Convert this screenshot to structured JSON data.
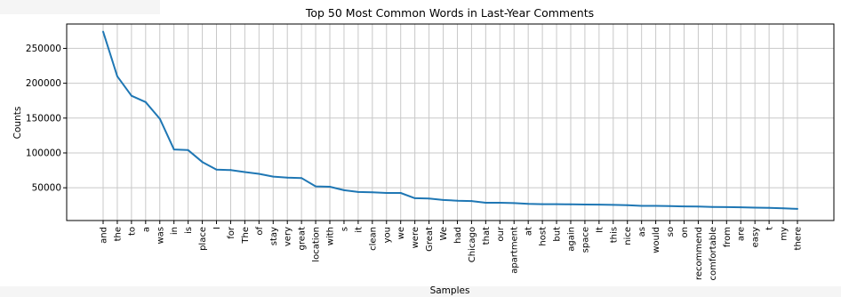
{
  "chart_data": {
    "type": "line",
    "title": "Top 50 Most Common Words in Last-Year Comments",
    "xlabel": "Samples",
    "ylabel": "Counts",
    "ylim": [
      3000,
      285000
    ],
    "yticks": [
      50000,
      100000,
      150000,
      200000,
      250000
    ],
    "ytick_labels": [
      "50000",
      "100000",
      "150000",
      "200000",
      "250000"
    ],
    "grid": true,
    "line_color": "#1f77b4",
    "categories": [
      "and",
      "the",
      "to",
      "a",
      "was",
      "in",
      "is",
      "place",
      "I",
      "for",
      "The",
      "of",
      "stay",
      "very",
      "great",
      "location",
      "with",
      "s",
      "it",
      "clean",
      "you",
      "we",
      "were",
      "Great",
      "We",
      "had",
      "Chicago",
      "that",
      "our",
      "apartment",
      "at",
      "host",
      "but",
      "again",
      "space",
      "It",
      "this",
      "nice",
      "as",
      "would",
      "so",
      "on",
      "recommend",
      "comfortable",
      "from",
      "are",
      "easy",
      "t",
      "my",
      "there"
    ],
    "values": [
      274000,
      210000,
      182000,
      173000,
      149000,
      105000,
      104000,
      87000,
      76000,
      75500,
      72500,
      70000,
      66000,
      64500,
      64000,
      52000,
      51500,
      46500,
      44000,
      43500,
      42500,
      42500,
      35000,
      34500,
      32500,
      31500,
      31000,
      28500,
      28500,
      28000,
      27000,
      26500,
      26500,
      26200,
      26000,
      25800,
      25500,
      25000,
      24000,
      24000,
      23700,
      23300,
      23000,
      22500,
      22300,
      22000,
      21500,
      21300,
      20500,
      19700
    ]
  }
}
